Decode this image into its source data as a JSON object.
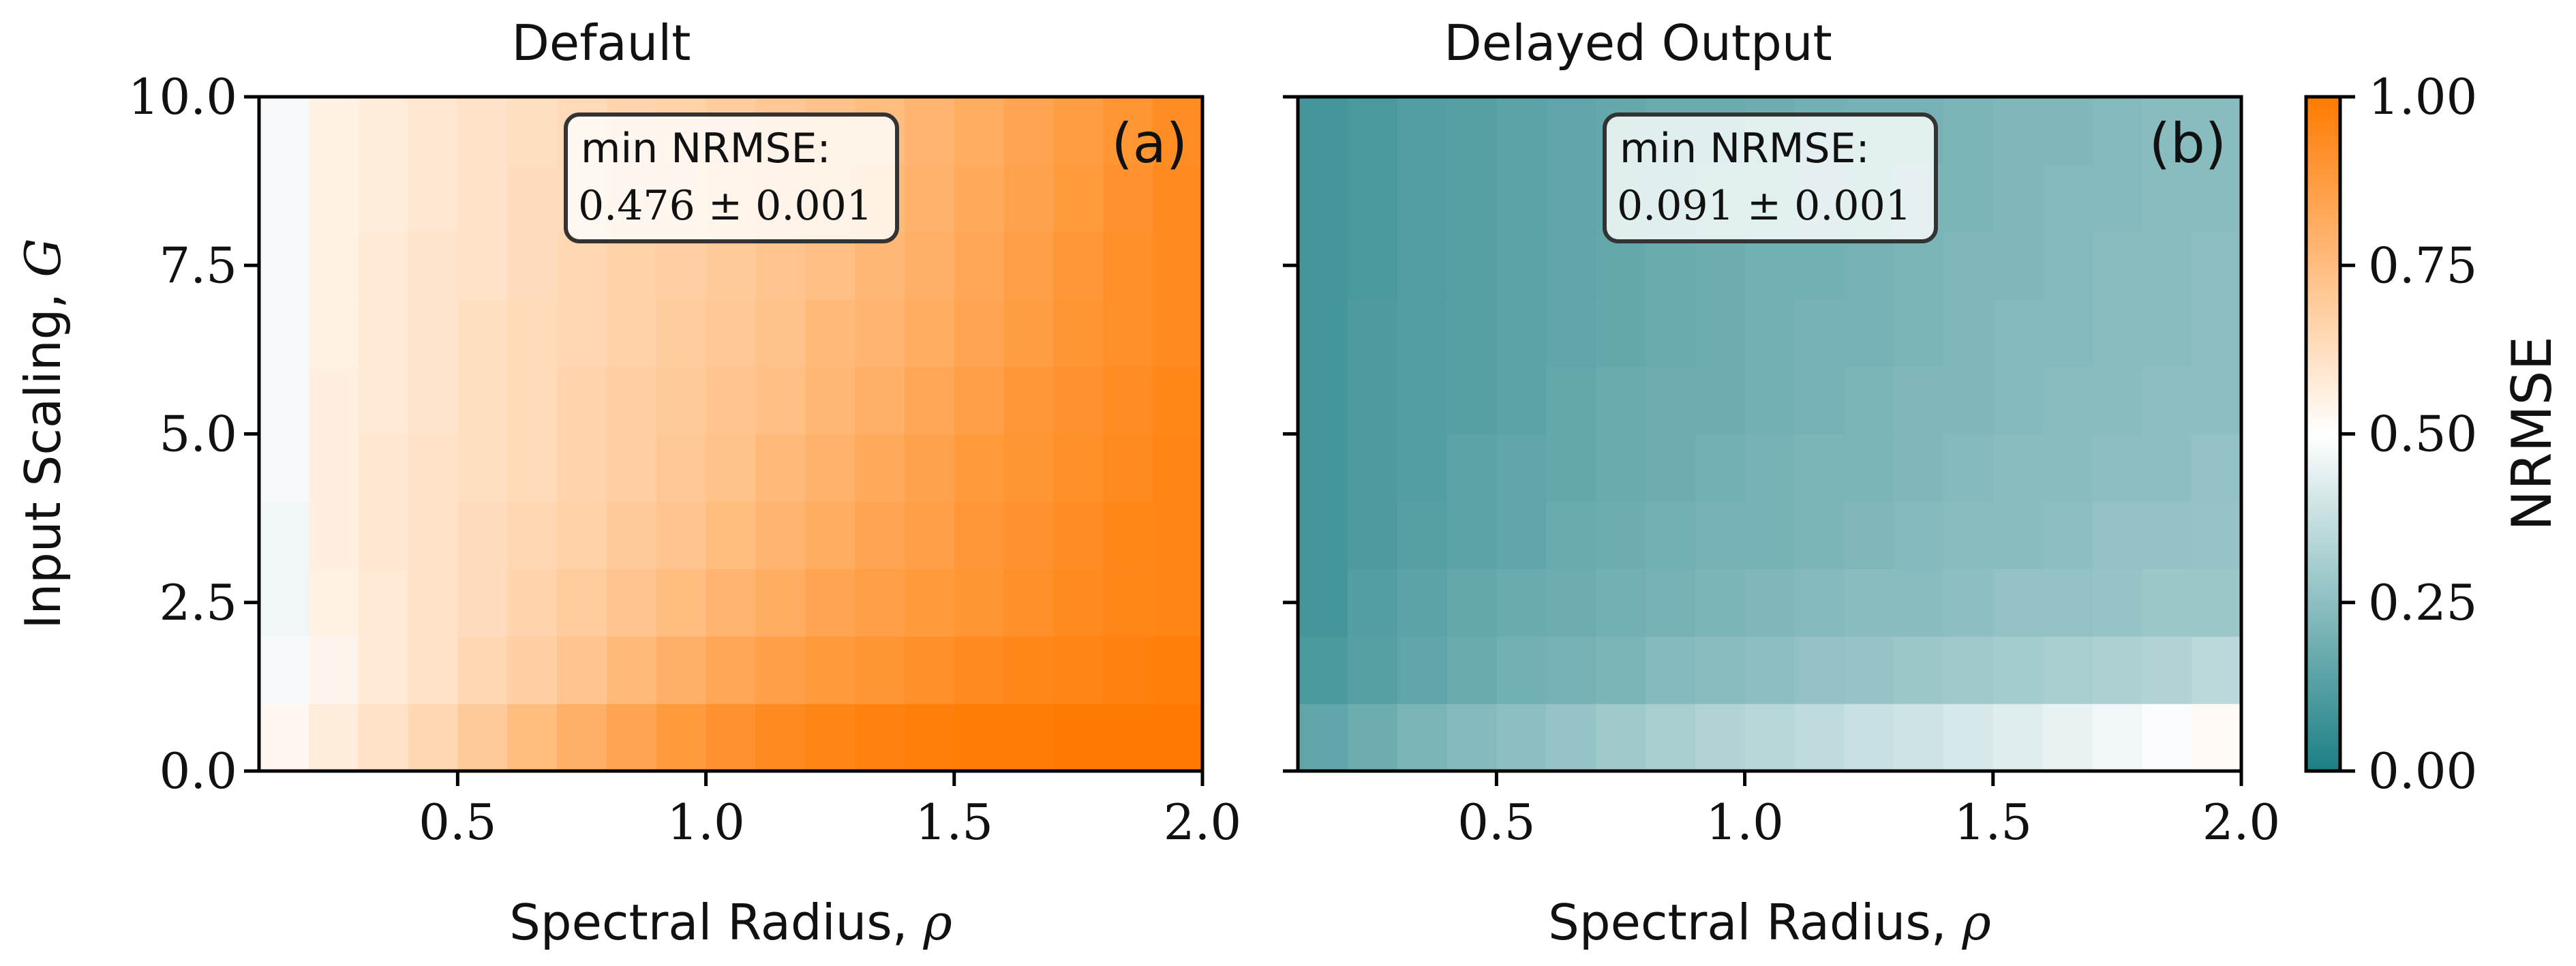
{
  "chart_data": [
    {
      "type": "heatmap",
      "title": "Default",
      "panel_label": "(a)",
      "xlabel": "Spectral Radius, ",
      "xlabel_symbol": "ρ",
      "ylabel": "Input Scaling, ",
      "ylabel_symbol": "G",
      "xlim": [
        0.1,
        2.0
      ],
      "ylim": [
        0.0,
        10.0
      ],
      "xticks": [
        "0.5",
        "1.0",
        "1.5",
        "2.0"
      ],
      "yticks": [
        "0.0",
        "2.5",
        "5.0",
        "7.5",
        "10.0"
      ],
      "annotation_title": "min NRMSE:",
      "annotation_value": "0.476 ± 0.001",
      "grid": false,
      "x": [
        0.1,
        0.2,
        0.3,
        0.4,
        0.5,
        0.6,
        0.7,
        0.8,
        0.9,
        1.0,
        1.1,
        1.2,
        1.3,
        1.4,
        1.5,
        1.6,
        1.7,
        1.8,
        1.9
      ],
      "y": [
        0,
        1,
        2,
        3,
        4,
        5,
        6,
        7,
        8,
        9
      ],
      "values": [
        [
          0.53,
          0.57,
          0.61,
          0.65,
          0.7,
          0.75,
          0.8,
          0.84,
          0.88,
          0.91,
          0.94,
          0.96,
          0.97,
          0.98,
          0.99,
          0.99,
          1.0,
          1.0,
          1.0
        ],
        [
          0.48,
          0.54,
          0.58,
          0.61,
          0.65,
          0.68,
          0.72,
          0.76,
          0.8,
          0.83,
          0.86,
          0.88,
          0.9,
          0.92,
          0.94,
          0.95,
          0.96,
          0.97,
          0.98
        ],
        [
          0.47,
          0.55,
          0.58,
          0.61,
          0.63,
          0.66,
          0.69,
          0.72,
          0.75,
          0.78,
          0.81,
          0.84,
          0.86,
          0.88,
          0.9,
          0.92,
          0.94,
          0.95,
          0.96
        ],
        [
          0.47,
          0.56,
          0.59,
          0.61,
          0.63,
          0.65,
          0.67,
          0.7,
          0.72,
          0.75,
          0.78,
          0.81,
          0.84,
          0.86,
          0.89,
          0.91,
          0.93,
          0.95,
          0.96
        ],
        [
          0.48,
          0.56,
          0.59,
          0.61,
          0.62,
          0.64,
          0.66,
          0.68,
          0.71,
          0.73,
          0.76,
          0.79,
          0.82,
          0.85,
          0.88,
          0.9,
          0.92,
          0.94,
          0.96
        ],
        [
          0.48,
          0.56,
          0.58,
          0.6,
          0.62,
          0.64,
          0.66,
          0.68,
          0.7,
          0.72,
          0.74,
          0.77,
          0.8,
          0.83,
          0.86,
          0.89,
          0.91,
          0.93,
          0.95
        ],
        [
          0.48,
          0.55,
          0.58,
          0.6,
          0.62,
          0.64,
          0.65,
          0.67,
          0.69,
          0.71,
          0.73,
          0.76,
          0.78,
          0.81,
          0.84,
          0.87,
          0.9,
          0.92,
          0.94
        ],
        [
          0.48,
          0.55,
          0.58,
          0.6,
          0.61,
          0.63,
          0.65,
          0.67,
          0.68,
          0.7,
          0.72,
          0.74,
          0.77,
          0.8,
          0.83,
          0.86,
          0.89,
          0.92,
          0.94
        ],
        [
          0.48,
          0.55,
          0.57,
          0.59,
          0.61,
          0.63,
          0.64,
          0.66,
          0.68,
          0.7,
          0.72,
          0.74,
          0.76,
          0.79,
          0.82,
          0.85,
          0.88,
          0.91,
          0.94
        ],
        [
          0.48,
          0.55,
          0.57,
          0.59,
          0.61,
          0.62,
          0.64,
          0.66,
          0.67,
          0.69,
          0.71,
          0.73,
          0.75,
          0.78,
          0.81,
          0.84,
          0.87,
          0.9,
          0.93
        ]
      ]
    },
    {
      "type": "heatmap",
      "title": "Delayed Output",
      "panel_label": "(b)",
      "xlabel": "Spectral Radius, ",
      "xlabel_symbol": "ρ",
      "xlim": [
        0.1,
        2.0
      ],
      "ylim": [
        0.0,
        10.0
      ],
      "xticks": [
        "0.5",
        "1.0",
        "1.5",
        "2.0"
      ],
      "annotation_title": "min NRMSE:",
      "annotation_value": "0.091 ± 0.001",
      "grid": false,
      "x": [
        0.1,
        0.2,
        0.3,
        0.4,
        0.5,
        0.6,
        0.7,
        0.8,
        0.9,
        1.0,
        1.1,
        1.2,
        1.3,
        1.4,
        1.5,
        1.6,
        1.7,
        1.8,
        1.9
      ],
      "y": [
        0,
        1,
        2,
        3,
        4,
        5,
        6,
        7,
        8,
        9
      ],
      "values": [
        [
          0.15,
          0.18,
          0.21,
          0.23,
          0.25,
          0.27,
          0.29,
          0.31,
          0.33,
          0.34,
          0.36,
          0.38,
          0.39,
          0.41,
          0.43,
          0.45,
          0.47,
          0.49,
          0.52
        ],
        [
          0.1,
          0.13,
          0.15,
          0.17,
          0.19,
          0.2,
          0.21,
          0.23,
          0.24,
          0.25,
          0.26,
          0.27,
          0.28,
          0.29,
          0.3,
          0.31,
          0.32,
          0.33,
          0.35
        ],
        [
          0.09,
          0.12,
          0.14,
          0.16,
          0.17,
          0.18,
          0.19,
          0.2,
          0.21,
          0.22,
          0.23,
          0.24,
          0.24,
          0.25,
          0.26,
          0.26,
          0.27,
          0.28,
          0.28
        ],
        [
          0.09,
          0.11,
          0.13,
          0.14,
          0.15,
          0.17,
          0.18,
          0.19,
          0.2,
          0.2,
          0.21,
          0.22,
          0.23,
          0.24,
          0.24,
          0.25,
          0.26,
          0.26,
          0.27
        ],
        [
          0.09,
          0.11,
          0.12,
          0.14,
          0.15,
          0.16,
          0.17,
          0.18,
          0.19,
          0.2,
          0.21,
          0.21,
          0.22,
          0.23,
          0.24,
          0.24,
          0.25,
          0.25,
          0.26
        ],
        [
          0.09,
          0.11,
          0.12,
          0.13,
          0.14,
          0.16,
          0.17,
          0.18,
          0.18,
          0.19,
          0.2,
          0.21,
          0.22,
          0.22,
          0.23,
          0.24,
          0.24,
          0.25,
          0.25
        ],
        [
          0.09,
          0.11,
          0.12,
          0.13,
          0.14,
          0.15,
          0.16,
          0.17,
          0.18,
          0.19,
          0.2,
          0.2,
          0.21,
          0.22,
          0.23,
          0.23,
          0.24,
          0.24,
          0.25
        ],
        [
          0.09,
          0.1,
          0.12,
          0.13,
          0.14,
          0.15,
          0.16,
          0.17,
          0.18,
          0.19,
          0.19,
          0.2,
          0.21,
          0.22,
          0.22,
          0.23,
          0.24,
          0.24,
          0.25
        ],
        [
          0.09,
          0.1,
          0.12,
          0.13,
          0.14,
          0.15,
          0.16,
          0.17,
          0.18,
          0.18,
          0.19,
          0.2,
          0.21,
          0.21,
          0.22,
          0.23,
          0.23,
          0.24,
          0.24
        ],
        [
          0.09,
          0.1,
          0.12,
          0.13,
          0.14,
          0.15,
          0.16,
          0.17,
          0.17,
          0.18,
          0.19,
          0.2,
          0.2,
          0.21,
          0.22,
          0.22,
          0.23,
          0.24,
          0.24
        ]
      ]
    }
  ],
  "colorbar": {
    "label": "NRMSE",
    "range": [
      0.0,
      1.0
    ],
    "ticks": [
      "0.00",
      "0.25",
      "0.50",
      "0.75",
      "1.00"
    ],
    "low_color": "#1b7f84",
    "mid_color": "#ffffff",
    "high_color": "#ff7a00"
  }
}
